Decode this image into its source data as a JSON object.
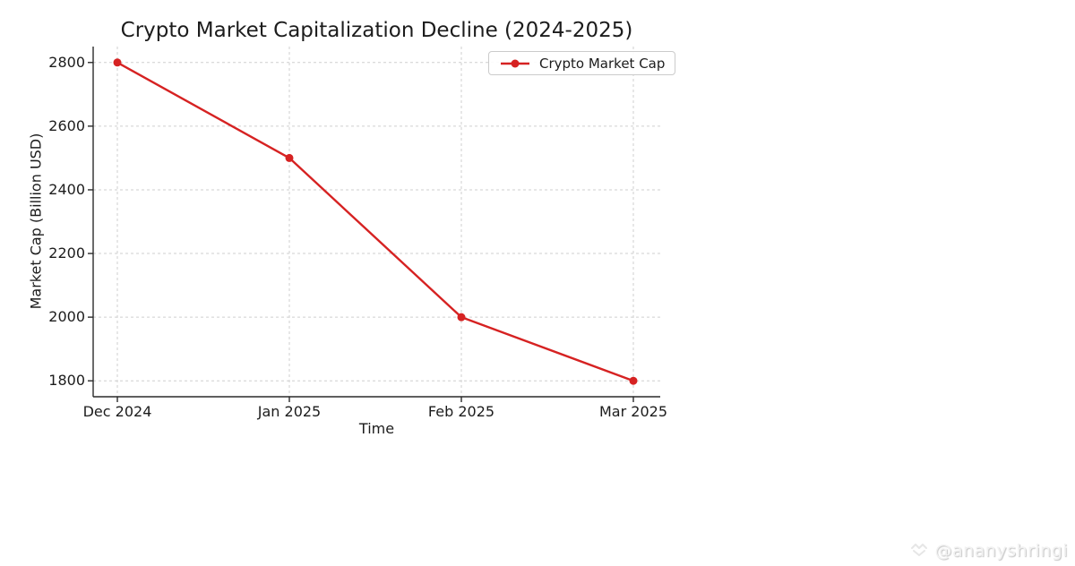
{
  "chart_data": {
    "type": "line",
    "title": "Crypto Market Capitalization Decline (2024-2025)",
    "xlabel": "Time",
    "ylabel": "Market Cap (Billion USD)",
    "categories": [
      "Dec 2024",
      "Jan 2025",
      "Feb 2025",
      "Mar 2025"
    ],
    "series": [
      {
        "name": "Crypto Market Cap",
        "values": [
          2800,
          2500,
          2000,
          1800
        ],
        "color": "#d62222",
        "marker": "circle"
      }
    ],
    "yticks": [
      1800,
      2000,
      2200,
      2400,
      2600,
      2800
    ],
    "ylim": [
      1750,
      2850
    ],
    "grid": true,
    "grid_style": "dashed",
    "legend_position": "top-right",
    "spines": [
      "left",
      "bottom"
    ]
  },
  "watermark": {
    "text": "@ananyshringi",
    "icon": "chevron-diamond-logo"
  },
  "colors": {
    "line": "#d62222",
    "grid": "#cfcfcf",
    "spine": "#2a2a2a",
    "text": "#1c1c1c",
    "legend_border": "#cbcbcb",
    "watermark": "#f2f2f2"
  }
}
